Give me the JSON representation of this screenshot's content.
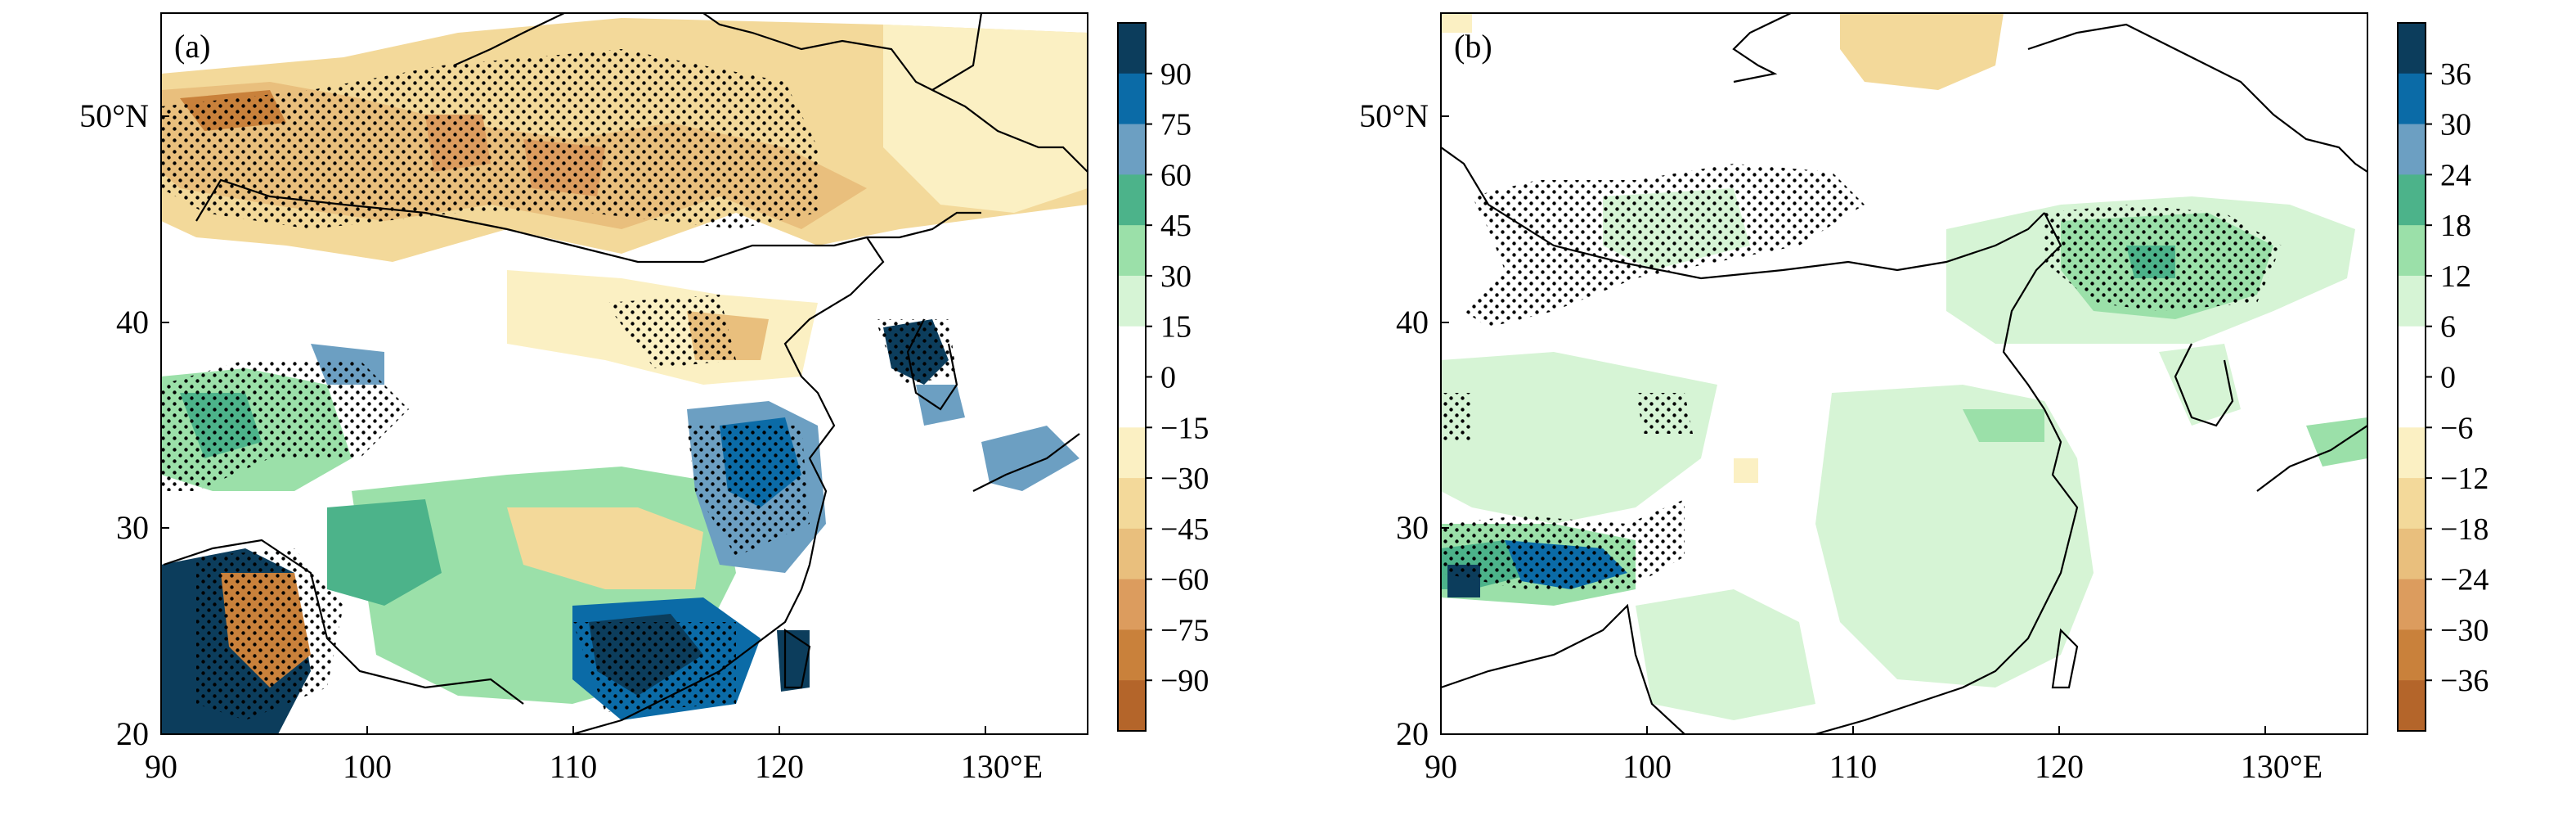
{
  "panels": [
    {
      "label": "(a)",
      "colorbar": {
        "ticks": [
          "90",
          "75",
          "60",
          "45",
          "30",
          "15",
          "0",
          "−15",
          "−30",
          "−45",
          "−60",
          "−75",
          "−90"
        ],
        "colors": [
          "#0c3d5c",
          "#0b6ba7",
          "#6c9fc2",
          "#4cb38a",
          "#9be0a9",
          "#d6f4d5",
          "#ffffff",
          "#ffffff",
          "#fbf0c3",
          "#f3d99a",
          "#e9bf7d",
          "#dc9c5e",
          "#c9813b",
          "#b4652a"
        ]
      }
    },
    {
      "label": "(b)",
      "colorbar": {
        "ticks": [
          "36",
          "30",
          "24",
          "18",
          "12",
          "6",
          "0",
          "−6",
          "−12",
          "−18",
          "−24",
          "−30",
          "−36"
        ],
        "colors": [
          "#0c3d5c",
          "#0b6ba7",
          "#6c9fc2",
          "#4cb38a",
          "#9be0a9",
          "#d6f4d5",
          "#ffffff",
          "#ffffff",
          "#fbf0c3",
          "#f3d99a",
          "#e9bf7d",
          "#dc9c5e",
          "#c9813b",
          "#b4652a"
        ]
      }
    }
  ],
  "axes": {
    "x_ticks": [
      "90",
      "100",
      "110",
      "120",
      "130°E"
    ],
    "y_ticks": [
      "20",
      "30",
      "40",
      "50°N"
    ],
    "x_range": [
      90,
      135
    ],
    "y_range": [
      20,
      55
    ]
  },
  "colors": {
    "land_outline": "#000000",
    "stipple": "#000000"
  }
}
